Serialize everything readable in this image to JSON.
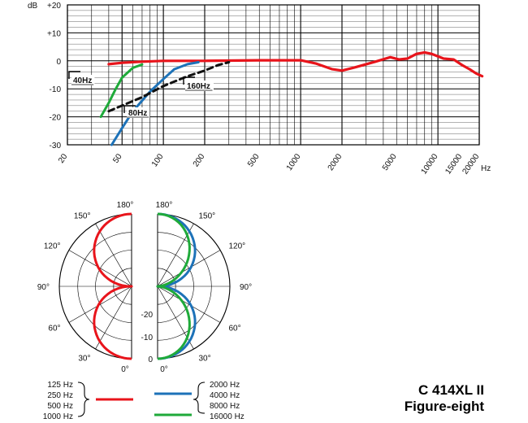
{
  "chart_data": [
    {
      "type": "line",
      "title": "",
      "xscale": "log",
      "xlim": [
        20,
        20000
      ],
      "ylim": [
        -30,
        20
      ],
      "ylabel": "dB",
      "xunit": "Hz",
      "y_ticks": [
        {
          "v": 20,
          "label": "+20"
        },
        {
          "v": 10,
          "label": "+10"
        },
        {
          "v": 0,
          "label": "0"
        },
        {
          "v": -10,
          "label": "-10"
        },
        {
          "v": -20,
          "label": "-20"
        },
        {
          "v": -30,
          "label": "-30"
        }
      ],
      "x_ticks": [
        {
          "v": 20,
          "label": "20"
        },
        {
          "v": 50,
          "label": "50"
        },
        {
          "v": 100,
          "label": "100"
        },
        {
          "v": 200,
          "label": "200"
        },
        {
          "v": 500,
          "label": "500"
        },
        {
          "v": 1000,
          "label": "1000"
        },
        {
          "v": 2000,
          "label": "2000"
        },
        {
          "v": 5000,
          "label": "5000"
        },
        {
          "v": 10000,
          "label": "10000"
        },
        {
          "v": 15000,
          "label": "15000"
        },
        {
          "v": 20000,
          "label": "20000"
        }
      ],
      "series": [
        {
          "key": "main",
          "color": "#e8141b",
          "dash": false,
          "points": [
            [
              40,
              -1.2
            ],
            [
              50,
              -0.7
            ],
            [
              70,
              -0.3
            ],
            [
              100,
              0
            ],
            [
              200,
              0
            ],
            [
              500,
              0.2
            ],
            [
              1000,
              0.2
            ],
            [
              1300,
              -1
            ],
            [
              1700,
              -3
            ],
            [
              2000,
              -3.5
            ],
            [
              2500,
              -2.3
            ],
            [
              3500,
              -0.3
            ],
            [
              4500,
              1.3
            ],
            [
              5200,
              0.5
            ],
            [
              6000,
              0.8
            ],
            [
              7000,
              2.5
            ],
            [
              8000,
              3
            ],
            [
              9000,
              2.5
            ],
            [
              11000,
              0.8
            ],
            [
              13000,
              0.5
            ],
            [
              15000,
              -1.5
            ],
            [
              17000,
              -3
            ],
            [
              19000,
              -4.5
            ],
            [
              21000,
              -5.5
            ]
          ]
        },
        {
          "key": "40hz",
          "label": "40Hz",
          "color": "#1faa3a",
          "dash": false,
          "points": [
            [
              35,
              -20
            ],
            [
              40,
              -15
            ],
            [
              45,
              -10
            ],
            [
              50,
              -6
            ],
            [
              60,
              -2.5
            ],
            [
              70,
              -1.3
            ]
          ]
        },
        {
          "key": "80hz",
          "label": "80Hz",
          "color": "#1d72b8",
          "dash": false,
          "points": [
            [
              42,
              -30
            ],
            [
              50,
              -24
            ],
            [
              60,
              -18
            ],
            [
              80,
              -11
            ],
            [
              100,
              -6.5
            ],
            [
              120,
              -3
            ],
            [
              150,
              -1.2
            ],
            [
              180,
              -0.5
            ]
          ]
        },
        {
          "key": "160hz",
          "label": "160Hz",
          "color": "#111111",
          "dash": true,
          "points": [
            [
              40,
              -18
            ],
            [
              50,
              -16
            ],
            [
              70,
              -13
            ],
            [
              100,
              -9
            ],
            [
              150,
              -5.5
            ],
            [
              200,
              -3.5
            ],
            [
              250,
              -1.5
            ],
            [
              300,
              -0.5
            ]
          ]
        }
      ]
    },
    {
      "type": "polar",
      "title": "",
      "unit": "°",
      "ring_db": [
        0,
        -10,
        -20
      ],
      "angle_labels": [
        "180°",
        "150°",
        "120°",
        "90°",
        "60°",
        "30°",
        "0°"
      ],
      "db_labels": [
        "-20",
        "-10",
        "0"
      ],
      "legend": {
        "left": [
          "125 Hz",
          "250 Hz",
          "500 Hz",
          "1000 Hz"
        ],
        "right": [
          "2000 Hz",
          "4000 Hz",
          "8000 Hz",
          "16000 Hz"
        ]
      },
      "series": [
        {
          "side": "left",
          "name": "125-1000 Hz",
          "color": "#e8141b",
          "pattern": "figure-eight"
        },
        {
          "side": "right",
          "name": "2000-8000 Hz",
          "color": "#1d72b8",
          "pattern": "figure-eight"
        },
        {
          "side": "right",
          "name": "16000 Hz",
          "color": "#1faa3a",
          "pattern": "narrow figure-eight"
        }
      ]
    }
  ],
  "product": {
    "model": "C 414XL II",
    "pattern": "Figure-eight"
  }
}
